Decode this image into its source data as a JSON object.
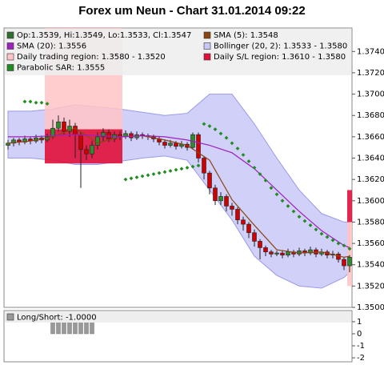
{
  "chart_data": [
    {
      "type": "candlestick",
      "title": "Forex um Neun - Chart 31.01.2014 09:22",
      "candle_legend": "Op:1.3539, Hi:1.3549, Lo:1.3533, Cl:1.3547",
      "up_color": "#2e8b2e",
      "down_color": "#d00000",
      "legend_color": "#2f6f2f",
      "open": [
        1.3652,
        1.3654,
        1.3657,
        1.3655,
        1.3658,
        1.3656,
        1.3659,
        1.3657,
        1.366,
        1.3668,
        1.3674,
        1.3665,
        1.367,
        1.3662,
        1.3648,
        1.3644,
        1.3652,
        1.366,
        1.3664,
        1.3658,
        1.3662,
        1.366,
        1.3663,
        1.3659,
        1.3662,
        1.3661,
        1.366,
        1.3658,
        1.3655,
        1.3652,
        1.3654,
        1.3651,
        1.3653,
        1.365,
        1.3662,
        1.364,
        1.3626,
        1.3612,
        1.36,
        1.3604,
        1.3595,
        1.3592,
        1.3582,
        1.3578,
        1.357,
        1.3562,
        1.3556,
        1.3552,
        1.355,
        1.3551,
        1.3549,
        1.3552,
        1.355,
        1.3553,
        1.3551,
        1.3554,
        1.355,
        1.3552,
        1.3549,
        1.355,
        1.3545,
        1.3539
      ],
      "high": [
        1.3657,
        1.3659,
        1.3659,
        1.3661,
        1.366,
        1.3662,
        1.3661,
        1.3663,
        1.3676,
        1.368,
        1.3678,
        1.3676,
        1.3673,
        1.3665,
        1.3652,
        1.3656,
        1.3664,
        1.3668,
        1.3667,
        1.3665,
        1.3665,
        1.3666,
        1.3665,
        1.3665,
        1.3664,
        1.3663,
        1.3662,
        1.366,
        1.3657,
        1.3657,
        1.3656,
        1.3656,
        1.3655,
        1.3664,
        1.3664,
        1.3642,
        1.3628,
        1.3615,
        1.3608,
        1.3606,
        1.3598,
        1.3594,
        1.3585,
        1.358,
        1.3573,
        1.3564,
        1.3558,
        1.3554,
        1.3553,
        1.3553,
        1.3555,
        1.3554,
        1.3556,
        1.3555,
        1.3557,
        1.3556,
        1.3555,
        1.3554,
        1.3553,
        1.3552,
        1.3547,
        1.3549
      ],
      "low": [
        1.3648,
        1.3651,
        1.3652,
        1.3653,
        1.3653,
        1.3654,
        1.3654,
        1.3655,
        1.3658,
        1.3665,
        1.3662,
        1.366,
        1.364,
        1.3612,
        1.3638,
        1.364,
        1.3648,
        1.3656,
        1.3655,
        1.3655,
        1.3657,
        1.3658,
        1.3656,
        1.3657,
        1.3658,
        1.3657,
        1.3655,
        1.3652,
        1.3649,
        1.365,
        1.3648,
        1.3649,
        1.3647,
        1.3648,
        1.3636,
        1.362,
        1.3606,
        1.3596,
        1.3596,
        1.359,
        1.3586,
        1.3578,
        1.3572,
        1.3565,
        1.3557,
        1.3545,
        1.3548,
        1.3547,
        1.3548,
        1.3546,
        1.3547,
        1.3547,
        1.3548,
        1.3548,
        1.3549,
        1.3547,
        1.3548,
        1.3546,
        1.3546,
        1.3542,
        1.3535,
        1.3533
      ],
      "close": [
        1.3654,
        1.3657,
        1.3655,
        1.3658,
        1.3656,
        1.3659,
        1.3657,
        1.366,
        1.3668,
        1.3674,
        1.3665,
        1.367,
        1.3662,
        1.3648,
        1.3644,
        1.3652,
        1.366,
        1.3664,
        1.3658,
        1.3662,
        1.366,
        1.3663,
        1.3659,
        1.3662,
        1.3661,
        1.366,
        1.3658,
        1.3655,
        1.3652,
        1.3654,
        1.3651,
        1.3653,
        1.365,
        1.3662,
        1.364,
        1.3626,
        1.3612,
        1.36,
        1.3604,
        1.3595,
        1.3592,
        1.3582,
        1.3578,
        1.357,
        1.3562,
        1.3556,
        1.3552,
        1.355,
        1.3551,
        1.3549,
        1.3552,
        1.355,
        1.3553,
        1.3551,
        1.3554,
        1.355,
        1.3552,
        1.3549,
        1.355,
        1.3545,
        1.3539,
        1.3547
      ],
      "lines": [
        {
          "name": "SMA (5): 1.3548",
          "color": "#8b4513",
          "x": [
            0,
            4,
            8,
            12,
            16,
            20,
            24,
            28,
            32,
            36,
            40,
            44,
            48,
            52,
            56,
            60,
            61
          ],
          "values": [
            1.3654,
            1.3656,
            1.366,
            1.3668,
            1.3654,
            1.366,
            1.3661,
            1.3657,
            1.3652,
            1.3638,
            1.3601,
            1.3577,
            1.3554,
            1.3551,
            1.3552,
            1.3547,
            1.3548
          ]
        },
        {
          "name": "SMA (20): 1.3556",
          "color": "#a020c0",
          "x": [
            0,
            4,
            8,
            12,
            16,
            20,
            24,
            28,
            32,
            36,
            40,
            44,
            48,
            52,
            56,
            60,
            61
          ],
          "values": [
            1.366,
            1.366,
            1.3661,
            1.3662,
            1.3661,
            1.366,
            1.3661,
            1.366,
            1.3657,
            1.3652,
            1.3645,
            1.363,
            1.361,
            1.359,
            1.3572,
            1.3558,
            1.3556
          ]
        }
      ],
      "bollinger": {
        "name": "Bollinger (20, 2): 1.3533 - 1.3580",
        "color": "#c8c8f8",
        "x": [
          0,
          4,
          8,
          12,
          16,
          20,
          24,
          28,
          32,
          36,
          40,
          44,
          48,
          52,
          56,
          60,
          61
        ],
        "upper": [
          1.3684,
          1.3684,
          1.3686,
          1.369,
          1.3688,
          1.3686,
          1.3683,
          1.368,
          1.3682,
          1.37,
          1.37,
          1.3672,
          1.364,
          1.361,
          1.3588,
          1.358,
          1.358
        ],
        "lower": [
          1.364,
          1.364,
          1.3638,
          1.3634,
          1.3634,
          1.3637,
          1.364,
          1.3642,
          1.3638,
          1.361,
          1.3582,
          1.3548,
          1.353,
          1.352,
          1.3518,
          1.3528,
          1.3533
        ]
      },
      "regions": [
        {
          "name": "Daily trading region: 1.3580 - 1.3520",
          "color": "#ffc4c4",
          "bands": [
            {
              "from": 7,
              "to": 20,
              "low": 1.3664,
              "high": 1.3762
            },
            {
              "from": 61,
              "to": 61,
              "low": 1.352,
              "high": 1.358
            }
          ]
        },
        {
          "name": "Daily S/L region: 1.3610 - 1.3580",
          "color": "#e0103a",
          "bands": [
            {
              "from": 7,
              "to": 20,
              "low": 1.3635,
              "high": 1.3667
            },
            {
              "from": 61,
              "to": 61,
              "low": 1.358,
              "high": 1.361
            }
          ]
        }
      ],
      "sar": {
        "name": "Parabolic SAR: 1.3555",
        "color": "#228b22",
        "values": [
          null,
          null,
          null,
          1.3693,
          1.3693,
          1.3692,
          1.3692,
          1.3691,
          null,
          null,
          null,
          null,
          null,
          null,
          null,
          null,
          null,
          null,
          null,
          null,
          null,
          1.362,
          1.3621,
          1.3622,
          1.3623,
          1.3624,
          1.3625,
          1.3626,
          1.3627,
          1.3628,
          1.3629,
          1.363,
          1.3631,
          1.3632,
          1.3633,
          1.3672,
          1.367,
          1.3667,
          1.3663,
          1.3659,
          1.3654,
          1.3649,
          1.3643,
          1.3637,
          1.3631,
          1.3625,
          1.3619,
          1.3612,
          1.3606,
          1.36,
          1.3595,
          1.359,
          1.3585,
          1.3581,
          1.3577,
          1.3573,
          1.3569,
          1.3566,
          1.3563,
          1.356,
          1.3558,
          1.3555
        ]
      },
      "ylim": [
        1.35,
        1.3762
      ],
      "yticks": [
        {
          "value": 1.35,
          "label": "1.3500"
        },
        {
          "value": 1.352,
          "label": "1.3520"
        },
        {
          "value": 1.354,
          "label": "1.3540"
        },
        {
          "value": 1.356,
          "label": "1.3560"
        },
        {
          "value": 1.358,
          "label": "1.3580"
        },
        {
          "value": 1.36,
          "label": "1.3600"
        },
        {
          "value": 1.362,
          "label": "1.3620"
        },
        {
          "value": 1.364,
          "label": "1.3640"
        },
        {
          "value": 1.366,
          "label": "1.3660"
        },
        {
          "value": 1.368,
          "label": "1.3680"
        },
        {
          "value": 1.37,
          "label": "1.3700"
        },
        {
          "value": 1.372,
          "label": "1.3720"
        },
        {
          "value": 1.374,
          "label": "1.3740"
        }
      ],
      "grid": false
    },
    {
      "type": "bar",
      "series": [
        {
          "name": "Long/Short: -1.0000",
          "color": "#999999",
          "values": [
            null,
            null,
            null,
            null,
            null,
            null,
            null,
            null,
            1,
            1,
            1,
            1,
            1,
            1,
            1,
            1,
            null,
            null,
            null,
            null,
            null,
            null,
            null,
            null,
            null,
            null,
            null,
            null,
            null,
            null,
            null,
            null,
            null,
            null,
            null,
            null,
            null,
            null,
            null,
            null,
            null,
            null,
            null,
            null,
            null,
            null,
            null,
            null,
            null,
            null,
            null,
            null,
            null,
            null,
            null,
            null,
            null,
            null,
            null,
            null,
            null,
            null
          ]
        }
      ],
      "ylim": [
        -2.33,
        1.93
      ],
      "yticks": [
        1,
        0,
        -1,
        -2
      ],
      "grid": false
    }
  ]
}
